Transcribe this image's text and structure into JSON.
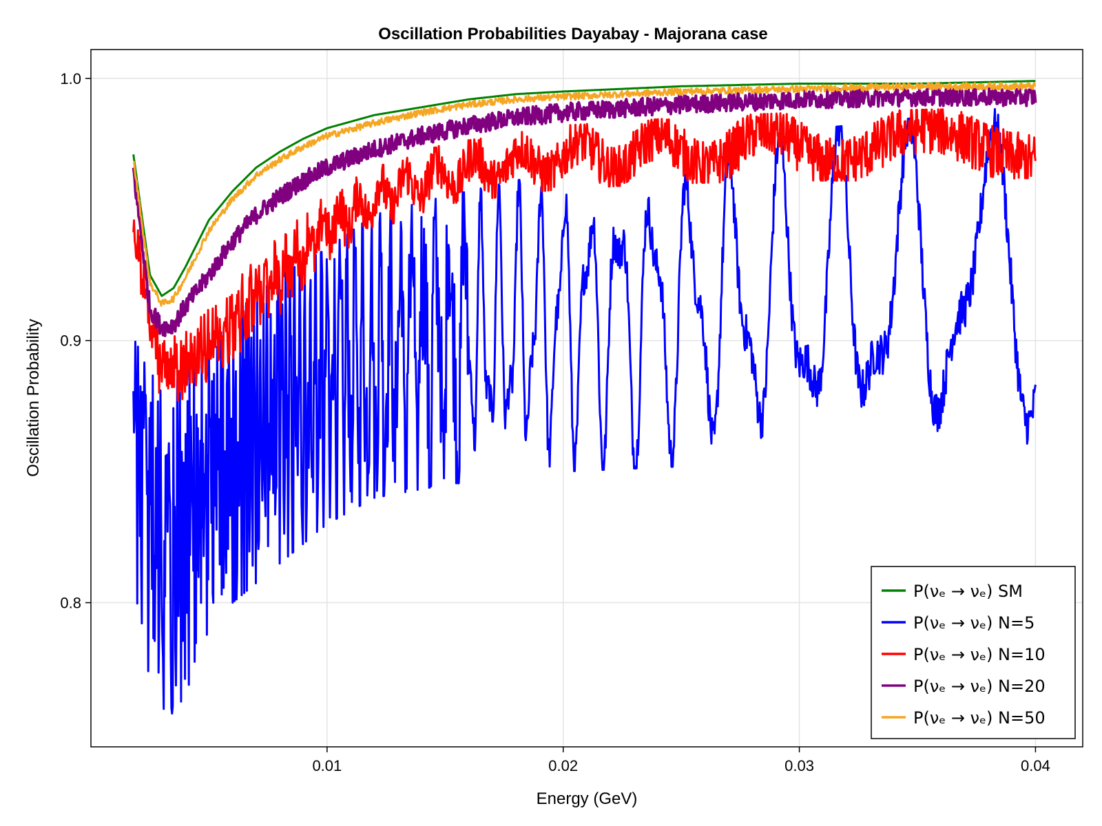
{
  "chart_data": {
    "type": "line",
    "title": "Oscillation Probabilities Dayabay - Majorana case",
    "xlabel": "Energy (GeV)",
    "ylabel": "Oscillation Probability",
    "xlim": [
      0.0,
      0.042
    ],
    "ylim": [
      0.745,
      1.011
    ],
    "xticks": [
      0.01,
      0.02,
      0.03,
      0.04
    ],
    "xtick_labels": [
      "0.01",
      "0.02",
      "0.03",
      "0.04"
    ],
    "yticks": [
      0.8,
      0.9,
      1.0
    ],
    "ytick_labels": [
      "0.8",
      "0.9",
      "1.0"
    ],
    "grid": true,
    "legend_position": "bottom-right",
    "x_range": [
      0.0018,
      0.04
    ],
    "series": [
      {
        "name": "P(νₑ → νₑ) SM",
        "color": "#008000",
        "x": [
          0.0018,
          0.0025,
          0.003,
          0.0035,
          0.004,
          0.005,
          0.006,
          0.007,
          0.008,
          0.009,
          0.01,
          0.012,
          0.014,
          0.016,
          0.018,
          0.02,
          0.025,
          0.03,
          0.035,
          0.04
        ],
        "values": [
          0.971,
          0.925,
          0.917,
          0.92,
          0.928,
          0.946,
          0.957,
          0.966,
          0.972,
          0.977,
          0.981,
          0.986,
          0.989,
          0.992,
          0.994,
          0.995,
          0.997,
          0.998,
          0.998,
          0.999
        ]
      },
      {
        "name": "P(νₑ → νₑ) N=5",
        "color": "#0000ff",
        "x": [
          0.0018,
          0.003,
          0.004,
          0.005,
          0.006,
          0.008,
          0.01,
          0.012,
          0.015,
          0.02,
          0.025,
          0.03,
          0.035,
          0.04
        ],
        "upper": [
          0.901,
          0.88,
          0.89,
          0.903,
          0.91,
          0.925,
          0.935,
          0.948,
          0.955,
          0.965,
          0.972,
          0.98,
          0.985,
          0.99
        ],
        "lower": [
          0.8,
          0.75,
          0.765,
          0.79,
          0.8,
          0.815,
          0.83,
          0.84,
          0.845,
          0.85,
          0.852,
          0.853,
          0.855,
          0.86
        ]
      },
      {
        "name": "P(νₑ →  νₑ) N=10",
        "color": "#ff0000",
        "x": [
          0.0018,
          0.003,
          0.004,
          0.005,
          0.006,
          0.008,
          0.01,
          0.012,
          0.015,
          0.02,
          0.025,
          0.03,
          0.035,
          0.04
        ],
        "upper": [
          0.95,
          0.9,
          0.903,
          0.912,
          0.922,
          0.94,
          0.956,
          0.966,
          0.975,
          0.982,
          0.985,
          0.987,
          0.988,
          0.989
        ],
        "lower": [
          0.93,
          0.875,
          0.878,
          0.885,
          0.893,
          0.91,
          0.93,
          0.942,
          0.952,
          0.958,
          0.96,
          0.961,
          0.961,
          0.962
        ]
      },
      {
        "name": "P(νₑ →  νₑ) N=20",
        "color": "#800080",
        "x": [
          0.0018,
          0.0025,
          0.003,
          0.0035,
          0.004,
          0.005,
          0.006,
          0.007,
          0.008,
          0.009,
          0.01,
          0.012,
          0.014,
          0.016,
          0.018,
          0.02,
          0.025,
          0.03,
          0.035,
          0.04
        ],
        "values": [
          0.965,
          0.912,
          0.905,
          0.906,
          0.913,
          0.925,
          0.938,
          0.948,
          0.955,
          0.961,
          0.966,
          0.973,
          0.978,
          0.982,
          0.985,
          0.987,
          0.99,
          0.992,
          0.993,
          0.993
        ]
      },
      {
        "name": "P(νₑ →  νₑ) N=50",
        "color": "#f5a623",
        "x": [
          0.0018,
          0.0025,
          0.003,
          0.0035,
          0.004,
          0.005,
          0.006,
          0.007,
          0.008,
          0.009,
          0.01,
          0.012,
          0.014,
          0.016,
          0.018,
          0.02,
          0.025,
          0.03,
          0.035,
          0.04
        ],
        "values": [
          0.969,
          0.922,
          0.914,
          0.916,
          0.924,
          0.942,
          0.954,
          0.963,
          0.969,
          0.974,
          0.978,
          0.983,
          0.987,
          0.99,
          0.992,
          0.993,
          0.995,
          0.996,
          0.997,
          0.997
        ]
      }
    ]
  }
}
